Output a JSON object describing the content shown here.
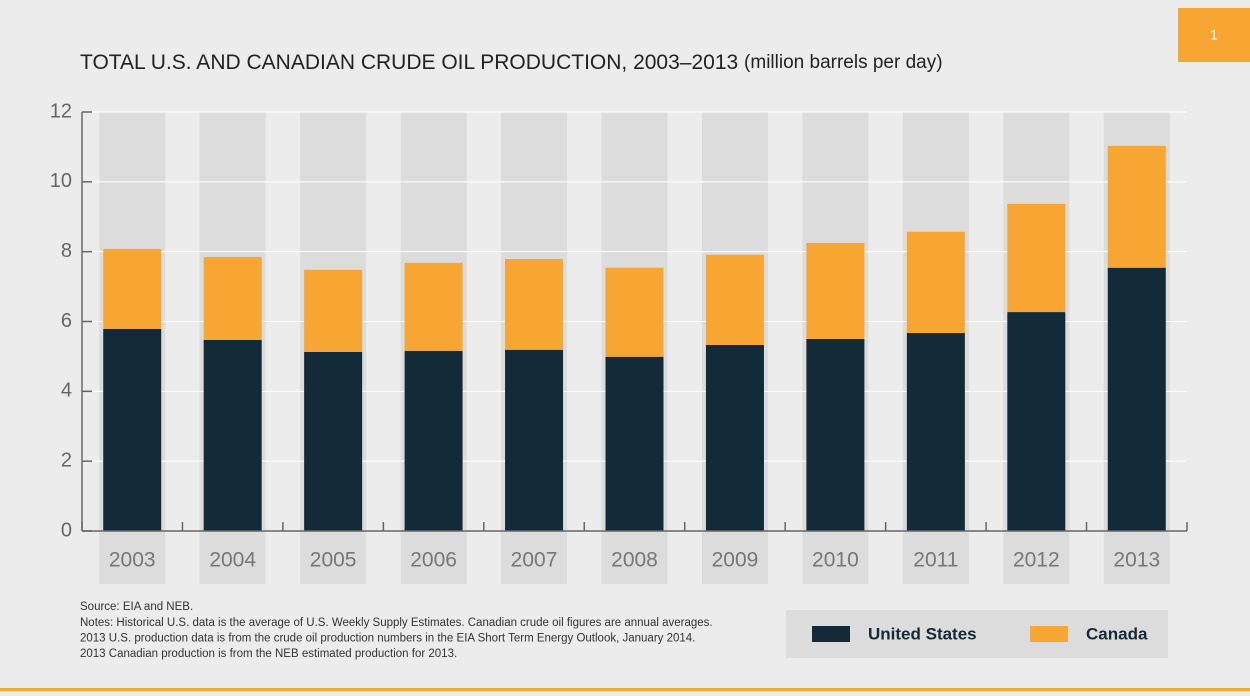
{
  "page_number": "1",
  "chart_data": {
    "type": "stacked_bar",
    "title": "TOTAL U.S. AND CANADIAN CRUDE OIL PRODUCTION, 2003–2013",
    "subtitle": "(million barrels per day)",
    "categories": [
      "2003",
      "2004",
      "2005",
      "2006",
      "2007",
      "2008",
      "2009",
      "2010",
      "2011",
      "2012",
      "2013"
    ],
    "series": [
      {
        "name": "United States",
        "color": "#132a38",
        "values": [
          5.79,
          5.47,
          5.13,
          5.16,
          5.19,
          4.99,
          5.33,
          5.5,
          5.67,
          6.27,
          7.54
        ]
      },
      {
        "name": "Canada",
        "color": "#f7a533",
        "values": [
          2.29,
          2.38,
          2.35,
          2.52,
          2.6,
          2.55,
          2.58,
          2.75,
          2.9,
          3.1,
          3.49
        ]
      }
    ],
    "ylim": [
      0,
      12
    ],
    "yticks": [
      0,
      2,
      4,
      6,
      8,
      10,
      12
    ],
    "grid": true,
    "source": "Source: EIA and NEB.",
    "notes": [
      "Notes: Historical U.S. data is the average of U.S. Weekly Supply Estimates. Canadian crude oil figures are annual averages.",
      "2013 U.S. production data is from the crude oil production numbers in the EIA Short Term Energy Outlook, January 2014.",
      "2013 Canadian production is from the NEB estimated production for 2013."
    ]
  }
}
